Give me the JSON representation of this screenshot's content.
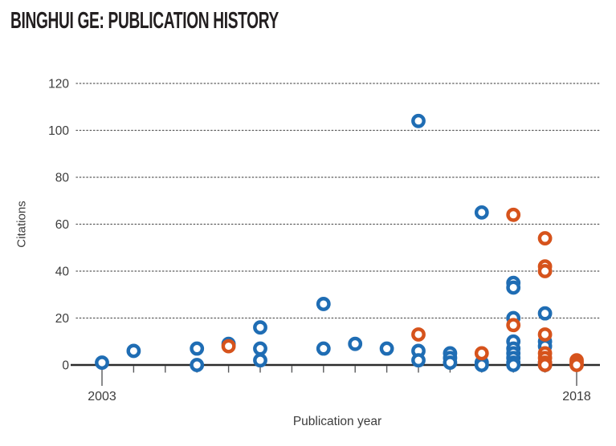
{
  "title": "BINGHUI GE: PUBLICATION HISTORY",
  "chart_data": {
    "type": "scatter",
    "title": "BINGHUI GE: PUBLICATION HISTORY",
    "xlabel": "Publication year",
    "ylabel": "Citations",
    "xlim": [
      2002,
      2019
    ],
    "ylim": [
      0,
      120
    ],
    "y_ticks": [
      0,
      20,
      40,
      60,
      80,
      100,
      120
    ],
    "x_ticks": [
      2003,
      2004,
      2005,
      2006,
      2007,
      2008,
      2009,
      2010,
      2011,
      2012,
      2013,
      2014,
      2015,
      2016,
      2017,
      2018
    ],
    "x_labeled_ticks": [
      2003,
      2018
    ],
    "grid": "horizontal-dotted",
    "legend": "none",
    "marker_style": "open-ring",
    "series": [
      {
        "name": "publications-blue",
        "color": "#1f6db4",
        "points": [
          [
            2003,
            1
          ],
          [
            2004,
            6
          ],
          [
            2006,
            7
          ],
          [
            2006,
            0
          ],
          [
            2007,
            9
          ],
          [
            2008,
            16
          ],
          [
            2008,
            7
          ],
          [
            2008,
            2
          ],
          [
            2010,
            26
          ],
          [
            2010,
            7
          ],
          [
            2011,
            9
          ],
          [
            2012,
            7
          ],
          [
            2013,
            104
          ],
          [
            2013,
            6
          ],
          [
            2013,
            2
          ],
          [
            2014,
            5
          ],
          [
            2014,
            3
          ],
          [
            2014,
            1
          ],
          [
            2015,
            65
          ],
          [
            2015,
            1
          ],
          [
            2015,
            0
          ],
          [
            2016,
            35
          ],
          [
            2016,
            33
          ],
          [
            2016,
            20
          ],
          [
            2016,
            10
          ],
          [
            2016,
            7
          ],
          [
            2016,
            5
          ],
          [
            2016,
            3
          ],
          [
            2016,
            1
          ],
          [
            2016,
            0
          ],
          [
            2017,
            22
          ],
          [
            2017,
            10
          ],
          [
            2017,
            8
          ],
          [
            2017,
            1
          ],
          [
            2017,
            0
          ]
        ]
      },
      {
        "name": "publications-orange",
        "color": "#d6531c",
        "points": [
          [
            2007,
            8
          ],
          [
            2013,
            13
          ],
          [
            2015,
            5
          ],
          [
            2016,
            64
          ],
          [
            2016,
            17
          ],
          [
            2017,
            54
          ],
          [
            2017,
            42
          ],
          [
            2017,
            40
          ],
          [
            2017,
            13
          ],
          [
            2017,
            5
          ],
          [
            2017,
            3
          ],
          [
            2017,
            1
          ],
          [
            2017,
            0
          ],
          [
            2018,
            2
          ],
          [
            2018,
            1
          ],
          [
            2018,
            0
          ]
        ]
      }
    ],
    "axis_colors": {
      "axis_line": "#2b2b2b",
      "grid_dots": "#5a5a5a",
      "tick_marks": "#58595b",
      "tick_labels": "#3c3c3c"
    }
  }
}
